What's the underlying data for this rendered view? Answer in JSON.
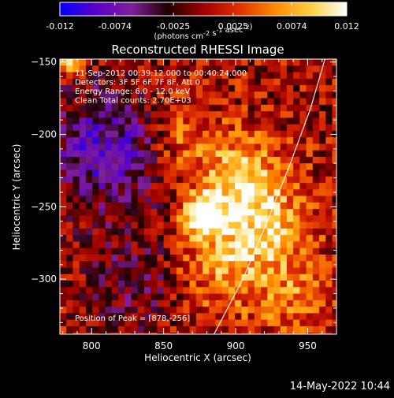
{
  "chart_data": {
    "type": "heatmap",
    "title": "Reconstructed RHESSI Image",
    "xlabel": "Heliocentric X (arcsec)",
    "ylabel": "Heliocentric Y (arcsec)",
    "xlim": [
      778,
      970
    ],
    "ylim": [
      -338,
      -148
    ],
    "xticks": [
      800,
      850,
      900,
      950
    ],
    "yticks": [
      -150,
      -200,
      -250,
      -300
    ],
    "grid": false,
    "colorbar": {
      "min": -0.012,
      "max": 0.012,
      "ticks": [
        "-0.012",
        "-0.0074",
        "-0.0025",
        "0.0025",
        "0.0074",
        "0.012"
      ],
      "unit_label": "(photons cm-2 s-1 asec-2)",
      "colormap": [
        "#0000ff",
        "#5a00c8",
        "#7e1f9a",
        "#1e0000",
        "#a00000",
        "#e03000",
        "#ff8a00",
        "#ffd040",
        "#ffffff"
      ]
    },
    "info_lines": [
      "11-Sep-2012 00:39:12.000 to 00:40:24.000",
      "Detectors: 3F 5F 6F 7F 8F, Att 0",
      "Energy Range: 6.0 - 12.0 keV",
      "Clean    Total counts: 2.70E+03"
    ],
    "peak_label": "Position of Peak = [878,-256]",
    "peak": {
      "x": 878,
      "y": -256,
      "value": 0.012
    },
    "sources": [
      {
        "x": 878,
        "y": -256,
        "amplitude": 0.0135,
        "sigma": 10
      },
      {
        "x": 905,
        "y": -232,
        "amplitude": 0.0085,
        "sigma": 22
      },
      {
        "x": 925,
        "y": -268,
        "amplitude": 0.0065,
        "sigma": 20
      },
      {
        "x": 890,
        "y": -290,
        "amplitude": 0.006,
        "sigma": 24
      },
      {
        "x": 860,
        "y": -200,
        "amplitude": 0.0045,
        "sigma": 18
      },
      {
        "x": 785,
        "y": -150,
        "amplitude": 0.011,
        "sigma": 6
      },
      {
        "x": 940,
        "y": -315,
        "amplitude": 0.0045,
        "sigma": 18
      },
      {
        "x": 810,
        "y": -210,
        "amplitude": -0.009,
        "sigma": 28
      },
      {
        "x": 830,
        "y": -300,
        "amplitude": -0.004,
        "sigma": 26
      }
    ],
    "limb_arc": [
      {
        "x": 885,
        "y": -338
      },
      {
        "x": 905,
        "y": -300
      },
      {
        "x": 922,
        "y": -260
      },
      {
        "x": 938,
        "y": -220
      },
      {
        "x": 952,
        "y": -182
      },
      {
        "x": 962,
        "y": -148
      }
    ]
  },
  "timestamp": "14-May-2022 10:44",
  "colors": {
    "background": "#000000",
    "foreground": "#ffffff"
  }
}
